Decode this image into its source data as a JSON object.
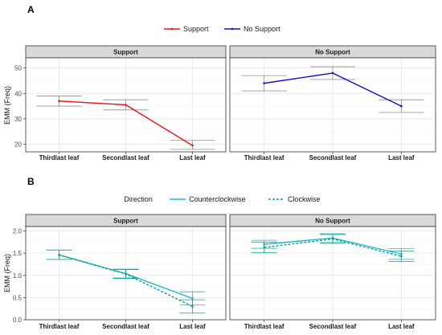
{
  "figure": {
    "panel_a_letter": "A",
    "panel_b_letter": "B"
  },
  "chart_data": [
    {
      "type": "line",
      "panel": "A",
      "facets": [
        "Support",
        "No Support"
      ],
      "categories": [
        "Thirdlast leaf",
        "Secondlast leaf",
        "Last leaf"
      ],
      "ylabel": "EMM (Freq)",
      "xlabel": "",
      "ylim": [
        17,
        54
      ],
      "yticks": [
        20,
        30,
        40,
        50
      ],
      "grid": true,
      "legend": {
        "position": "top-center",
        "title": ""
      },
      "series": [
        {
          "name": "Support",
          "facet": "Support",
          "color": "#e41a1c",
          "dash": "solid",
          "values": [
            37,
            35.5,
            19.5
          ],
          "ci_low": [
            35,
            33.5,
            18
          ],
          "ci_high": [
            39,
            37.5,
            21.5
          ]
        },
        {
          "name": "No Support",
          "facet": "No Support",
          "color": "#1010d0",
          "dash": "solid",
          "values": [
            44,
            48,
            35
          ],
          "ci_low": [
            41,
            45.5,
            32.5
          ],
          "ci_high": [
            47,
            50.5,
            37.5
          ]
        }
      ]
    },
    {
      "type": "line",
      "panel": "B",
      "facets": [
        "Support",
        "No Support"
      ],
      "categories": [
        "Thirdlast leaf",
        "Secondlast leaf",
        "Last leaf"
      ],
      "ylabel": "EMM (Freq)",
      "xlabel": "",
      "ylim": [
        0.0,
        2.1
      ],
      "yticks": [
        0.0,
        0.5,
        1.0,
        1.5,
        2.0
      ],
      "ytick_labels": [
        "0.0",
        "0.5",
        "1.0",
        "1.5",
        "2.0"
      ],
      "grid": true,
      "legend": {
        "position": "top-center",
        "title": "Direction"
      },
      "series": [
        {
          "name": "Counterclockwise",
          "facet": "Support",
          "color": "#1fb5c9",
          "dash": "solid",
          "values": [
            1.46,
            1.04,
            0.48
          ],
          "ci_low": [
            1.36,
            0.94,
            0.33
          ],
          "ci_high": [
            1.57,
            1.14,
            0.63
          ]
        },
        {
          "name": "Clockwise",
          "facet": "Support",
          "color": "#14a08a",
          "dash": "dashed",
          "values": [
            1.46,
            1.03,
            0.3
          ],
          "ci_low": [
            1.36,
            0.93,
            0.15
          ],
          "ci_high": [
            1.57,
            1.13,
            0.45
          ]
        },
        {
          "name": "Counterclockwise",
          "facet": "No Support",
          "color": "#1fb5c9",
          "dash": "solid",
          "values": [
            1.7,
            1.84,
            1.48
          ],
          "ci_low": [
            1.61,
            1.74,
            1.36
          ],
          "ci_high": [
            1.79,
            1.94,
            1.6
          ]
        },
        {
          "name": "Clockwise",
          "facet": "No Support",
          "color": "#14a08a",
          "dash": "dashed",
          "values": [
            1.63,
            1.82,
            1.43
          ],
          "ci_low": [
            1.51,
            1.72,
            1.31
          ],
          "ci_high": [
            1.75,
            1.92,
            1.55
          ]
        }
      ]
    }
  ]
}
